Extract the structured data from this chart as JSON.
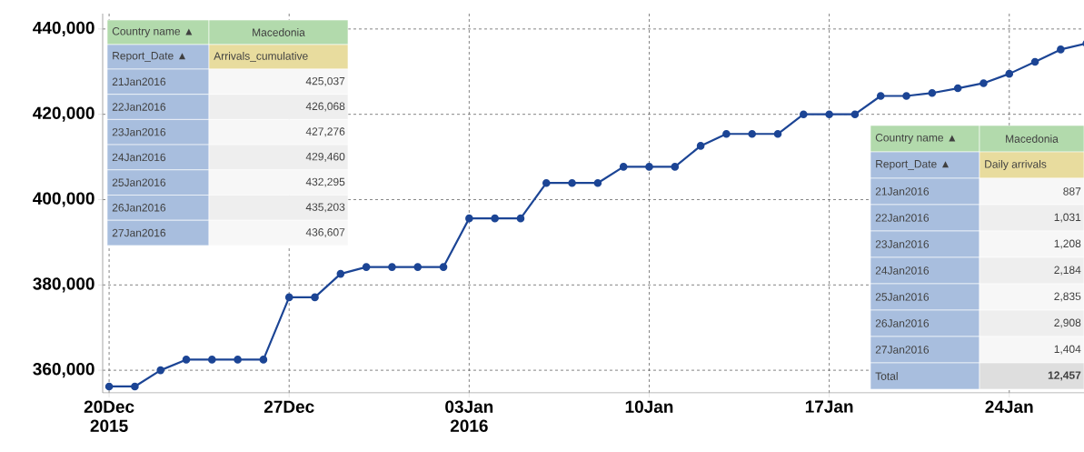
{
  "chart_data": {
    "type": "line",
    "x": [
      "2015-12-20",
      "2015-12-21",
      "2015-12-22",
      "2015-12-23",
      "2015-12-24",
      "2015-12-25",
      "2015-12-26",
      "2015-12-27",
      "2015-12-28",
      "2015-12-29",
      "2015-12-30",
      "2015-12-31",
      "2016-01-01",
      "2016-01-02",
      "2016-01-03",
      "2016-01-04",
      "2016-01-05",
      "2016-01-06",
      "2016-01-07",
      "2016-01-08",
      "2016-01-09",
      "2016-01-10",
      "2016-01-11",
      "2016-01-12",
      "2016-01-13",
      "2016-01-14",
      "2016-01-15",
      "2016-01-16",
      "2016-01-17",
      "2016-01-18",
      "2016-01-19",
      "2016-01-20",
      "2016-01-21",
      "2016-01-22",
      "2016-01-23",
      "2016-01-24",
      "2016-01-25",
      "2016-01-26",
      "2016-01-27"
    ],
    "series": [
      {
        "color": "#1c4595",
        "values": [
          356200,
          356200,
          360000,
          362500,
          362500,
          362500,
          362500,
          377100,
          377100,
          382600,
          384200,
          384200,
          384200,
          384200,
          395600,
          395600,
          395600,
          403900,
          403900,
          403900,
          407700,
          407700,
          407700,
          412600,
          415400,
          415400,
          415400,
          420000,
          420000,
          420000,
          424300,
          424300,
          425000,
          426100,
          427300,
          429500,
          432300,
          435200,
          436600
        ]
      }
    ],
    "xlim": [
      "2015-12-19T18:00",
      "2016-01-27T02:00"
    ],
    "ylim": [
      354700,
      443600
    ],
    "xticks": [
      {
        "value": "2015-12-20",
        "label": "20Dec 2015"
      },
      {
        "value": "2015-12-27",
        "label": "27Dec"
      },
      {
        "value": "2016-01-03",
        "label": "03Jan 2016"
      },
      {
        "value": "2016-01-10",
        "label": "10Jan"
      },
      {
        "value": "2016-01-17",
        "label": "17Jan"
      },
      {
        "value": "2016-01-24",
        "label": "24Jan"
      }
    ],
    "yticks": [
      {
        "value": 360000,
        "label": "360,000"
      },
      {
        "value": 380000,
        "label": "380,000"
      },
      {
        "value": 400000,
        "label": "400,000"
      },
      {
        "value": 420000,
        "label": "420,000"
      },
      {
        "value": 440000,
        "label": "440,000"
      }
    ],
    "grid": true,
    "marker": "circle",
    "line_style": "solid",
    "annotations": [
      "Country name ▲",
      "Macedonia",
      "Report_Date ▲",
      "Arrivals_cumulative",
      "21Jan2016",
      "425,037",
      "22Jan2016",
      "426,068",
      "23Jan2016",
      "427,276",
      "24Jan2016",
      "429,460",
      "25Jan2016",
      "432,295",
      "26Jan2016",
      "435,203",
      "27Jan2016",
      "436,607",
      "Country name ▲",
      "Macedonia",
      "Report_Date ▲",
      "Daily arrivals",
      "21Jan2016",
      "887",
      "22Jan2016",
      "1,031",
      "23Jan2016",
      "1,208",
      "24Jan2016",
      "2,184",
      "25Jan2016",
      "2,835",
      "26Jan2016",
      "2,908",
      "27Jan2016",
      "1,404",
      "Total",
      "12,457"
    ]
  }
}
